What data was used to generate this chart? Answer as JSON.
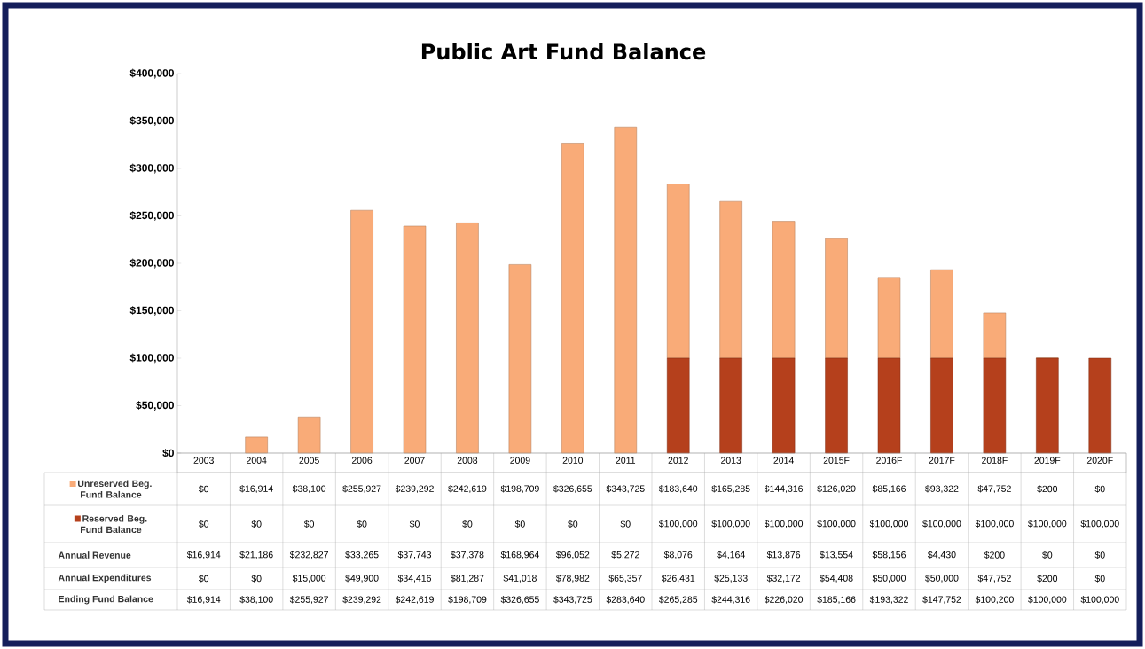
{
  "chart_data": {
    "type": "bar",
    "title": "Public Art Fund Balance",
    "stacked": true,
    "legend": "bottom",
    "data_labels": true,
    "categories": [
      "2003",
      "2004",
      "2005",
      "2006",
      "2007",
      "2008",
      "2009",
      "2010",
      "2011",
      "2012",
      "2013",
      "2014",
      "2015F",
      "2016F",
      "2017F",
      "2018F",
      "2019F",
      "2020F"
    ],
    "ylim": [
      0,
      400000
    ],
    "yticks": [
      {
        "value": 0,
        "label": "$0"
      },
      {
        "value": 50000,
        "label": "$50,000"
      },
      {
        "value": 100000,
        "label": "$100,000"
      },
      {
        "value": 150000,
        "label": "$150,000"
      },
      {
        "value": 200000,
        "label": "$200,000"
      },
      {
        "value": 250000,
        "label": "$250,000"
      },
      {
        "value": 300000,
        "label": "$300,000"
      },
      {
        "value": 350000,
        "label": "$350,000"
      },
      {
        "value": 400000,
        "label": "$400,000"
      }
    ],
    "series": [
      {
        "name": "Reserved Beg. Fund Balance",
        "color": "#b5401c",
        "values": [
          0,
          0,
          0,
          0,
          0,
          0,
          0,
          0,
          0,
          100000,
          100000,
          100000,
          100000,
          100000,
          100000,
          100000,
          100000,
          100000
        ],
        "value_labels": [
          "$0",
          "$0",
          "$0",
          "$0",
          "$0",
          "$0",
          "$0",
          "$0",
          "$0",
          "$100,000",
          "$100,000",
          "$100,000",
          "$100,000",
          "$100,000",
          "$100,000",
          "$100,000",
          "$100,000",
          "$100,000"
        ]
      },
      {
        "name": "Unreserved Beg. Fund Balance",
        "color": "#f9ab78",
        "values": [
          0,
          16914,
          38100,
          255927,
          239292,
          242619,
          198709,
          326655,
          343725,
          183640,
          165285,
          144316,
          126020,
          85166,
          93322,
          47752,
          200,
          0
        ],
        "value_labels": [
          "$0",
          "$16,914",
          "$38,100",
          "$255,927",
          "$239,292",
          "$242,619",
          "$198,709",
          "$326,655",
          "$343,725",
          "$183,640",
          "$165,285",
          "$144,316",
          "$126,020",
          "$85,166",
          "$93,322",
          "$47,752",
          "$200",
          "$0"
        ]
      }
    ],
    "annotations": [
      "Annual Revenue",
      "$16,914",
      "$21,186",
      "$232,827",
      "$33,265",
      "$37,743",
      "$37,378",
      "$168,964",
      "$96,052",
      "$5,272",
      "$8,076",
      "$4,164",
      "$13,876",
      "$13,554",
      "$58,156",
      "$4,430",
      "$200",
      "$0",
      "$0",
      "Annual Expenditures",
      "$0",
      "$0",
      "$15,000",
      "$49,900",
      "$34,416",
      "$81,287",
      "$41,018",
      "$78,982",
      "$65,357",
      "$26,431",
      "$25,133",
      "$32,172",
      "$54,408",
      "$50,000",
      "$50,000",
      "$47,752",
      "$200",
      "$0",
      "Ending Fund Balance",
      "$16,914",
      "$38,100",
      "$255,927",
      "$239,292",
      "$242,619",
      "$198,709",
      "$326,655",
      "$343,725",
      "$283,640",
      "$265,285",
      "$244,316",
      "$226,020",
      "$185,166",
      "$193,322",
      "$147,752",
      "$100,200",
      "$100,000",
      "$100,000"
    ]
  }
}
